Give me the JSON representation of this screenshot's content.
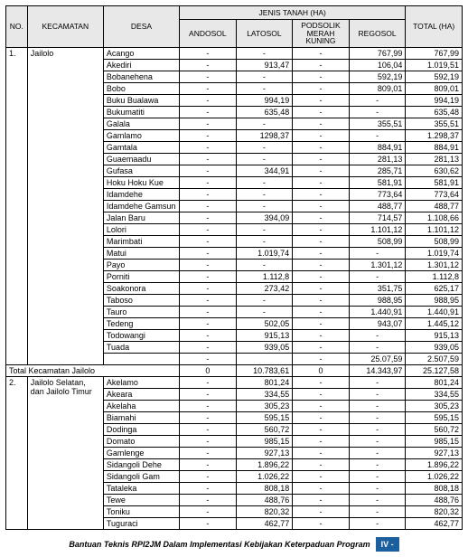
{
  "headers": {
    "no": "NO.",
    "kecamatan": "KECAMATAN",
    "desa": "DESA",
    "jenis": "JENIS TANAH (HA)",
    "andosol": "ANDOSOL",
    "latosol": "LATOSOL",
    "podsolik": "PODSOLIK MERAH KUNING",
    "regosol": "REGOSOL",
    "total": "TOTAL (HA)"
  },
  "total_row": {
    "label": "Total Kecamatan Jailolo",
    "andosol": "0",
    "latosol": "10.783,61",
    "podsolik": "0",
    "regosol": "14.343,97",
    "total": "25.127,58"
  },
  "sec1": {
    "no": "1.",
    "kec": "Jailolo",
    "rows": [
      {
        "desa": "Acango",
        "and": "-",
        "lat": "-",
        "pod": "-",
        "reg": "767,99",
        "tot": "767,99"
      },
      {
        "desa": "Akediri",
        "and": "-",
        "lat": "913,47",
        "pod": "-",
        "reg": "106,04",
        "tot": "1.019,51"
      },
      {
        "desa": "Bobanehena",
        "and": "-",
        "lat": "-",
        "pod": "-",
        "reg": "592,19",
        "tot": "592,19"
      },
      {
        "desa": "Bobo",
        "and": "-",
        "lat": "-",
        "pod": "-",
        "reg": "809,01",
        "tot": "809,01"
      },
      {
        "desa": "Buku Bualawa",
        "and": "-",
        "lat": "994,19",
        "pod": "-",
        "reg": "-",
        "tot": "994,19"
      },
      {
        "desa": "Bukumatiti",
        "and": "-",
        "lat": "635,48",
        "pod": "-",
        "reg": "-",
        "tot": "635,48"
      },
      {
        "desa": "Galala",
        "and": "-",
        "lat": "-",
        "pod": "-",
        "reg": "355,51",
        "tot": "355,51"
      },
      {
        "desa": "Gamlamo",
        "and": "-",
        "lat": "1298,37",
        "pod": "-",
        "reg": "-",
        "tot": "1.298,37"
      },
      {
        "desa": "Gamtala",
        "and": "-",
        "lat": "-",
        "pod": "-",
        "reg": "884,91",
        "tot": "884,91"
      },
      {
        "desa": "Guaemaadu",
        "and": "-",
        "lat": "-",
        "pod": "-",
        "reg": "281,13",
        "tot": "281,13"
      },
      {
        "desa": "Gufasa",
        "and": "-",
        "lat": "344,91",
        "pod": "-",
        "reg": "285,71",
        "tot": "630,62"
      },
      {
        "desa": "Hoku Hoku Kue",
        "and": "-",
        "lat": "-",
        "pod": "-",
        "reg": "581,91",
        "tot": "581,91"
      },
      {
        "desa": "Idamdehe",
        "and": "-",
        "lat": "-",
        "pod": "-",
        "reg": "773,64",
        "tot": "773,64"
      },
      {
        "desa": "Idamdehe Gamsun",
        "and": "-",
        "lat": "-",
        "pod": "-",
        "reg": "488,77",
        "tot": "488,77"
      },
      {
        "desa": "Jalan Baru",
        "and": "-",
        "lat": "394,09",
        "pod": "-",
        "reg": "714,57",
        "tot": "1.108,66"
      },
      {
        "desa": "Lolori",
        "and": "-",
        "lat": "-",
        "pod": "-",
        "reg": "1.101,12",
        "tot": "1.101,12"
      },
      {
        "desa": "Marimbati",
        "and": "-",
        "lat": "-",
        "pod": "-",
        "reg": "508,99",
        "tot": "508,99"
      },
      {
        "desa": "Matui",
        "and": "-",
        "lat": "1.019,74",
        "pod": "-",
        "reg": "-",
        "tot": "1.019,74"
      },
      {
        "desa": "Payo",
        "and": "-",
        "lat": "-",
        "pod": "-",
        "reg": "1.301,12",
        "tot": "1.301,12"
      },
      {
        "desa": "Porniti",
        "and": "-",
        "lat": "1.112,8",
        "pod": "-",
        "reg": "-",
        "tot": "1.112,8"
      },
      {
        "desa": "Soakonora",
        "and": "-",
        "lat": "273,42",
        "pod": "-",
        "reg": "351,75",
        "tot": "625,17"
      },
      {
        "desa": "Taboso",
        "and": "-",
        "lat": "-",
        "pod": "-",
        "reg": "988,95",
        "tot": "988,95"
      },
      {
        "desa": "Tauro",
        "and": "-",
        "lat": "-",
        "pod": "-",
        "reg": "1.440,91",
        "tot": "1.440,91"
      },
      {
        "desa": "Tedeng",
        "and": "-",
        "lat": "502,05",
        "pod": "-",
        "reg": "943,07",
        "tot": "1.445,12"
      },
      {
        "desa": "Todowangi",
        "and": "-",
        "lat": "915,13",
        "pod": "-",
        "reg": "-",
        "tot": "915,13"
      },
      {
        "desa": "Tuada",
        "and": "-",
        "lat": "939,05",
        "pod": "-",
        "reg": "-",
        "tot": "939,05"
      },
      {
        "desa": "",
        "and": "-",
        "lat": "",
        "pod": "-",
        "reg": "25.07,59",
        "tot": "2.507,59"
      }
    ]
  },
  "sec2": {
    "no": "2.",
    "kec1": "Jailolo Selatan,",
    "kec2": "dan Jailolo Timur",
    "rows": [
      {
        "desa": "Akelamo",
        "and": "-",
        "lat": "801,24",
        "pod": "-",
        "reg": "-",
        "tot": "801,24"
      },
      {
        "desa": "Akeara",
        "and": "-",
        "lat": "334,55",
        "pod": "-",
        "reg": "-",
        "tot": "334,55"
      },
      {
        "desa": "Akelaha",
        "and": "-",
        "lat": "305,23",
        "pod": "-",
        "reg": "-",
        "tot": "305,23"
      },
      {
        "desa": "Biamahi",
        "and": "-",
        "lat": "595,15",
        "pod": "-",
        "reg": "-",
        "tot": "595,15"
      },
      {
        "desa": "Dodinga",
        "and": "-",
        "lat": "560,72",
        "pod": "-",
        "reg": "-",
        "tot": "560,72"
      },
      {
        "desa": "Domato",
        "and": "-",
        "lat": "985,15",
        "pod": "-",
        "reg": "-",
        "tot": "985,15"
      },
      {
        "desa": "Gamlenge",
        "and": "-",
        "lat": "927,13",
        "pod": "-",
        "reg": "-",
        "tot": "927,13"
      },
      {
        "desa": "Sidangoli Dehe",
        "and": "-",
        "lat": "1.896,22",
        "pod": "-",
        "reg": "-",
        "tot": "1.896,22"
      },
      {
        "desa": "Sidangoli Gam",
        "and": "-",
        "lat": "1.026,22",
        "pod": "-",
        "reg": "-",
        "tot": "1.026,22"
      },
      {
        "desa": "Tataleka",
        "and": "-",
        "lat": "808,18",
        "pod": "-",
        "reg": "-",
        "tot": "808,18"
      },
      {
        "desa": "Tewe",
        "and": "-",
        "lat": "488,76",
        "pod": "-",
        "reg": "-",
        "tot": "488,76"
      },
      {
        "desa": "Toniku",
        "and": "-",
        "lat": "820,32",
        "pod": "-",
        "reg": "-",
        "tot": "820,32"
      },
      {
        "desa": "Tuguraci",
        "and": "-",
        "lat": "462,77",
        "pod": "-",
        "reg": "-",
        "tot": "462,77"
      }
    ]
  },
  "footer": {
    "text": "Bantuan Teknis RPI2JM Dalam Implementasi Kebijakan Keterpaduan Program",
    "badge": "IV -"
  }
}
